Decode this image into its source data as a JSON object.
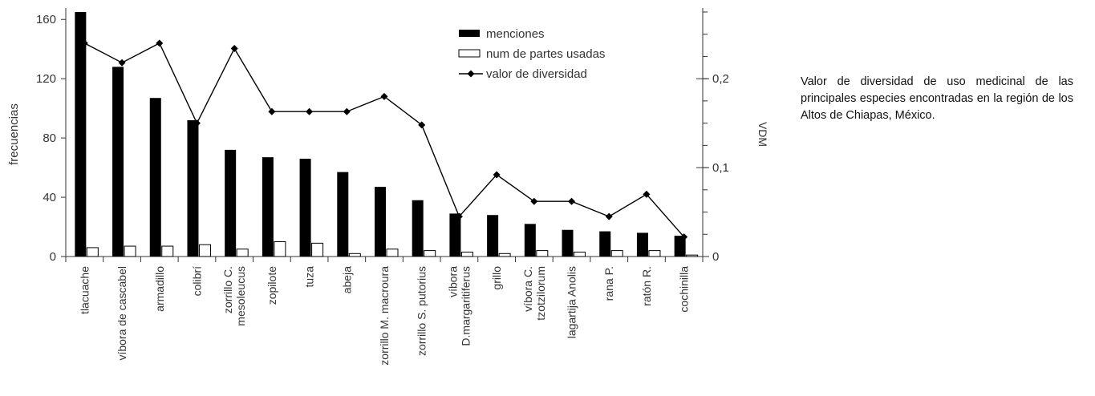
{
  "caption": "Valor de diversidad de uso medicinal de las principales especies encontradas en la región de los Altos de Chiapas, México.",
  "chart_data": {
    "type": "bar",
    "ylabel": "frecuencias",
    "y2label": "VDM",
    "ylim": [
      0,
      165
    ],
    "yticks": [
      0,
      40,
      80,
      120,
      160
    ],
    "y2lim": [
      0,
      0.275
    ],
    "y2ticks": [
      "0",
      "0,1",
      "0,2"
    ],
    "y2tick_values": [
      0,
      0.1,
      0.2
    ],
    "categories": [
      [
        "tlacuache"
      ],
      [
        "víbora de cascabel"
      ],
      [
        "armadillo"
      ],
      [
        "colibrí"
      ],
      [
        "zorrillo C.",
        "mesoleucus"
      ],
      [
        "zopilote"
      ],
      [
        "tuza"
      ],
      [
        "abeja"
      ],
      [
        "zorrillo M. macroura"
      ],
      [
        "zorrillo S. putorius"
      ],
      [
        "víbora",
        "D.margaritiferus"
      ],
      [
        "grillo"
      ],
      [
        "víbora C.",
        "tzotzilorum"
      ],
      [
        "lagartija Anolis"
      ],
      [
        "rana P."
      ],
      [
        "ratón R."
      ],
      [
        "cochinilla"
      ]
    ],
    "series": [
      {
        "name": "menciones",
        "type": "bar",
        "color": "#000000",
        "values": [
          165,
          128,
          107,
          92,
          72,
          67,
          66,
          57,
          47,
          38,
          29,
          28,
          22,
          18,
          17,
          16,
          14
        ]
      },
      {
        "name": "num de partes usadas",
        "type": "bar",
        "color": "#ffffff",
        "values": [
          6,
          7,
          7,
          8,
          5,
          10,
          9,
          2,
          5,
          4,
          3,
          2,
          4,
          3,
          4,
          4,
          1
        ]
      },
      {
        "name": "valor de diversidad",
        "type": "line",
        "axis": "right",
        "color": "#000000",
        "values": [
          0.24,
          0.218,
          0.24,
          0.15,
          0.234,
          0.163,
          0.163,
          0.163,
          0.18,
          0.148,
          0.045,
          0.092,
          0.062,
          0.062,
          0.045,
          0.07,
          0.022
        ]
      }
    ],
    "legend": "top-right"
  }
}
